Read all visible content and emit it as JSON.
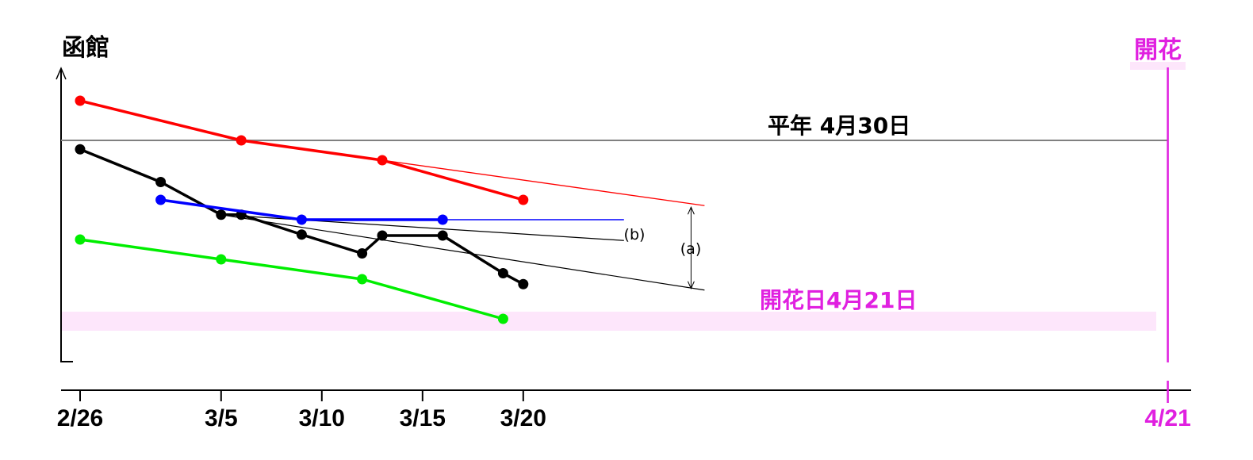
{
  "chart_data": {
    "type": "line",
    "title": "函館",
    "x_axis": {
      "ticks": [
        "2/26",
        "3/5",
        "3/10",
        "3/15",
        "3/20"
      ],
      "end_tick": "4/21"
    },
    "reference_lines": {
      "normal": {
        "label": "平年 4月30日",
        "date": "4/30",
        "color": "#808080"
      },
      "bloom": {
        "label": "開花日4月21日",
        "date": "4/21",
        "band_color": "#fde6fb"
      },
      "bloom_marker": {
        "label": "開花",
        "date": "4/21",
        "color": "#e020e0"
      }
    },
    "annotations": [
      "(a)",
      "(b)"
    ],
    "series": [
      {
        "color": "#ff0000",
        "points": [
          {
            "x": "2/26",
            "y": 4.32
          },
          {
            "x": "3/6",
            "y": 4.3
          },
          {
            "x": "3/13",
            "y": 4.29
          },
          {
            "x": "3/20",
            "y": 4.27
          }
        ],
        "trend_to": {
          "x": "3/29",
          "y": 4.2671
        }
      },
      {
        "color": "#000000",
        "points": [
          {
            "x": "2/26",
            "y": 4.2955
          },
          {
            "x": "3/2",
            "y": 4.279
          },
          {
            "x": "3/5",
            "y": 4.2625
          },
          {
            "x": "3/6",
            "y": 4.2625
          },
          {
            "x": "3/9",
            "y": 4.2525
          },
          {
            "x": "3/12",
            "y": 4.243
          },
          {
            "x": "3/13",
            "y": 4.252
          },
          {
            "x": "3/16",
            "y": 4.252
          },
          {
            "x": "3/19",
            "y": 4.233
          },
          {
            "x": "3/20",
            "y": 4.2275
          }
        ],
        "trend_to": {
          "x": "3/29",
          "y": 4.2245
        },
        "trend_b": {
          "from": {
            "x": "3/5",
            "y": 4.2625
          },
          "to": {
            "x": "3/25",
            "y": 4.2495
          }
        }
      },
      {
        "color": "#0000ff",
        "points": [
          {
            "x": "3/2",
            "y": 4.27
          },
          {
            "x": "3/9",
            "y": 4.26
          },
          {
            "x": "3/16",
            "y": 4.26
          }
        ],
        "trend_to": {
          "x": "3/25",
          "y": 4.26
        }
      },
      {
        "color": "#00ee00",
        "points": [
          {
            "x": "2/26",
            "y": 4.25
          },
          {
            "x": "3/5",
            "y": 4.24
          },
          {
            "x": "3/12",
            "y": 4.23
          },
          {
            "x": "3/19",
            "y": 4.21
          }
        ]
      }
    ]
  }
}
